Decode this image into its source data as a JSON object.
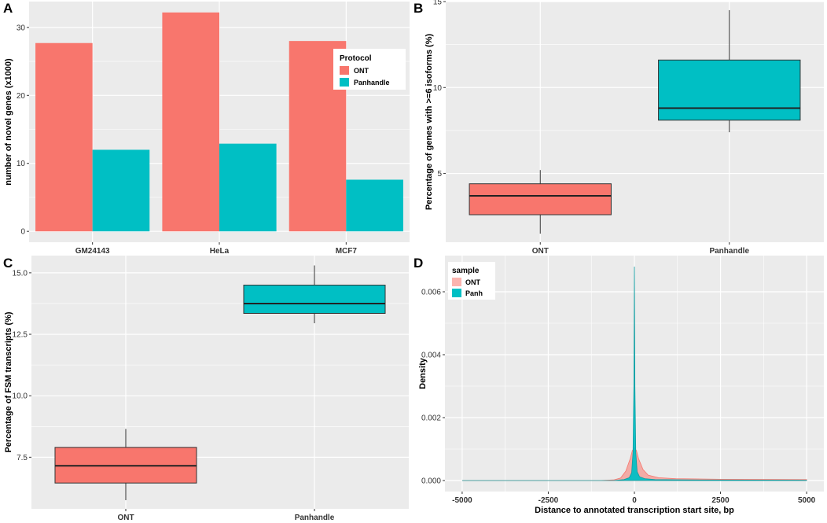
{
  "colors": {
    "ont": "#F8766D",
    "panhandle": "#00BFC4",
    "panel_bg": "#EBEBEB",
    "grid": "#FFFFFF"
  },
  "chart_data": [
    {
      "panel": "A",
      "type": "bar",
      "ylabel": "number of novel genes (x1000)",
      "xlabel": "",
      "categories": [
        "GM24143",
        "HeLa",
        "MCF7"
      ],
      "series": [
        {
          "name": "ONT",
          "values": [
            27.7,
            32.2,
            28.0
          ]
        },
        {
          "name": "Panhandle",
          "values": [
            12.0,
            12.9,
            7.6
          ]
        }
      ],
      "ylim": [
        -1.6,
        33.8
      ],
      "yticks": [
        0,
        10,
        20,
        30
      ],
      "legend": {
        "title": "Protocol",
        "entries": [
          "ONT",
          "Panhandle"
        ],
        "position": "right"
      }
    },
    {
      "panel": "B",
      "type": "box",
      "ylabel": "Percentage of genes with >=6 isoforms (%)",
      "xlabel": "",
      "categories": [
        "ONT",
        "Panhandle"
      ],
      "boxes": [
        {
          "name": "ONT",
          "min": 1.5,
          "q1": 2.6,
          "median": 3.7,
          "q3": 4.4,
          "max": 5.2
        },
        {
          "name": "Panhandle",
          "min": 7.4,
          "q1": 8.1,
          "median": 8.8,
          "q3": 11.6,
          "max": 14.5
        }
      ],
      "ylim": [
        1.0,
        15.0
      ],
      "yticks": [
        5,
        10,
        15
      ]
    },
    {
      "panel": "C",
      "type": "box",
      "ylabel": "Percentage of FSM transcripts (%)",
      "xlabel": "",
      "categories": [
        "ONT",
        "Panhandle"
      ],
      "boxes": [
        {
          "name": "ONT",
          "min": 5.75,
          "q1": 6.45,
          "median": 7.15,
          "q3": 7.9,
          "max": 8.65
        },
        {
          "name": "Panhandle",
          "min": 12.95,
          "q1": 13.35,
          "median": 13.75,
          "q3": 14.5,
          "max": 15.3
        }
      ],
      "ylim": [
        5.4,
        15.7
      ],
      "yticks": [
        7.5,
        10.0,
        12.5,
        15.0
      ],
      "ytick_labels": [
        "7.5",
        "10.0",
        "12.5",
        "15.0"
      ]
    },
    {
      "panel": "D",
      "type": "area",
      "ylabel": "Density",
      "xlabel": "Distance to annotated transcription start site, bp",
      "xlim": [
        -5500,
        5500
      ],
      "ylim": [
        -0.00035,
        0.00715
      ],
      "xticks": [
        -5000,
        -2500,
        0,
        2500,
        5000
      ],
      "yticks": [
        0.0,
        0.002,
        0.004,
        0.006
      ],
      "ytick_labels": [
        "0.000",
        "0.002",
        "0.004",
        "0.006"
      ],
      "series": [
        {
          "name": "ONT",
          "x": [
            -5000,
            -1000,
            -600,
            -400,
            -250,
            -120,
            -60,
            0,
            60,
            120,
            250,
            400,
            700,
            1200,
            2500,
            5000
          ],
          "y": [
            0.0,
            0.0,
            2e-05,
            8e-05,
            0.0003,
            0.0007,
            0.00095,
            0.00105,
            0.00095,
            0.0007,
            0.00035,
            0.00017,
            9e-05,
            6e-05,
            4e-05,
            3e-05
          ]
        },
        {
          "name": "Panh",
          "x": [
            -5000,
            -600,
            -300,
            -150,
            -80,
            -40,
            -15,
            0,
            15,
            40,
            80,
            150,
            300,
            600,
            1500,
            5000
          ],
          "y": [
            0.0,
            0.0,
            3e-05,
            9e-05,
            0.00025,
            0.0009,
            0.003,
            0.0068,
            0.003,
            0.0009,
            0.00028,
            0.00012,
            6e-05,
            3e-05,
            2e-05,
            1e-05
          ]
        }
      ],
      "legend": {
        "title": "sample",
        "entries": [
          "ONT",
          "Panh"
        ],
        "position": "top-left"
      }
    }
  ]
}
